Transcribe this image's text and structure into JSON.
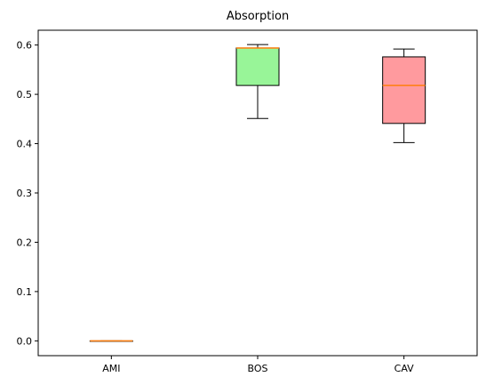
{
  "chart_data": {
    "type": "box",
    "title": "Absorption",
    "xlabel": "",
    "ylabel": "",
    "categories": [
      "AMI",
      "BOS",
      "CAV"
    ],
    "ylim": [
      -0.03,
      0.63
    ],
    "yticks": [
      0.0,
      0.1,
      0.2,
      0.3,
      0.4,
      0.5,
      0.6
    ],
    "ytick_labels": [
      "0.0",
      "0.1",
      "0.2",
      "0.3",
      "0.4",
      "0.5",
      "0.6"
    ],
    "grid": false,
    "legend": "none",
    "boxes": [
      {
        "category": "AMI",
        "whisker_low": 0.0,
        "q1": 0.0,
        "median": 0.0,
        "q3": 0.0,
        "whisker_high": 0.0,
        "fill": "#FFD27F"
      },
      {
        "category": "BOS",
        "whisker_low": 0.451,
        "q1": 0.518,
        "median": 0.594,
        "q3": 0.594,
        "whisker_high": 0.601,
        "fill": "#98F598"
      },
      {
        "category": "CAV",
        "whisker_low": 0.402,
        "q1": 0.441,
        "median": 0.518,
        "q3": 0.576,
        "whisker_high": 0.592,
        "fill": "#FF9A9E"
      }
    ],
    "colors": {
      "median": "#FF7F0E",
      "box_edge": "#000000"
    }
  }
}
